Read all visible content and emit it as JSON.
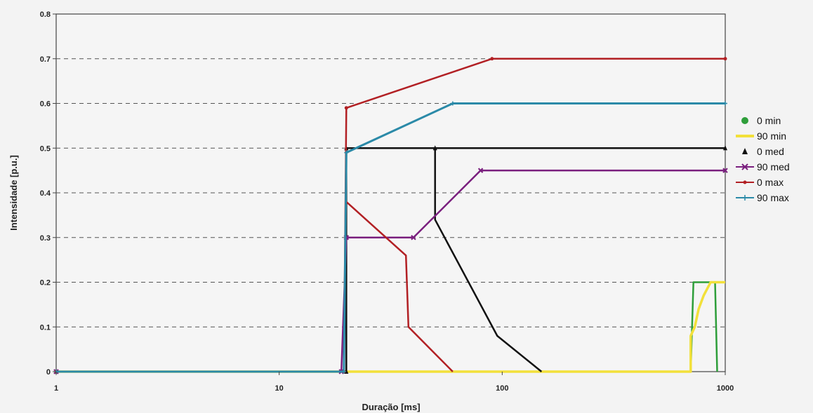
{
  "chart_data": {
    "type": "line",
    "xlabel": "Duração [ms]",
    "ylabel": "Intensidade [p.u.]",
    "xscale": "log",
    "xlim": [
      1,
      1000
    ],
    "ylim": [
      0,
      0.8
    ],
    "x_ticks": [
      1,
      10,
      100,
      1000
    ],
    "x_tick_labels": [
      "1",
      "10",
      "100",
      "1000"
    ],
    "y_ticks": [
      0,
      0.1,
      0.2,
      0.3,
      0.4,
      0.5,
      0.6,
      0.7,
      0.8
    ],
    "y_tick_labels": [
      "0",
      "0.1",
      "0.2",
      "0.3",
      "0.4",
      "0.5",
      "0.6",
      "0.7",
      "0.8"
    ],
    "grid": "horizontal dashed",
    "legend_position": "right",
    "series": [
      {
        "name": "0 min",
        "color": "#2e9e3a",
        "marker": "circle",
        "legend_marker_only": true,
        "points": [
          [
            1,
            0
          ],
          [
            700,
            0
          ],
          [
            720,
            0.2
          ],
          [
            900,
            0.2
          ],
          [
            920,
            0
          ]
        ]
      },
      {
        "name": "90 min",
        "color": "#f2e03a",
        "marker": "none",
        "points": [
          [
            1,
            0
          ],
          [
            700,
            0
          ],
          [
            700,
            0.08
          ],
          [
            730,
            0.1
          ],
          [
            760,
            0.14
          ],
          [
            800,
            0.17
          ],
          [
            860,
            0.2
          ],
          [
            1000,
            0.2
          ]
        ]
      },
      {
        "name": "0 med",
        "color": "#111111",
        "marker": "triangle",
        "points": [
          [
            1,
            0
          ],
          [
            20,
            0
          ],
          [
            20,
            0.5
          ],
          [
            50,
            0.5
          ],
          [
            1000,
            0.5
          ]
        ],
        "drop_points": [
          [
            50,
            0.5
          ],
          [
            50,
            0.34
          ],
          [
            95,
            0.08
          ],
          [
            150,
            0
          ]
        ]
      },
      {
        "name": "90 med",
        "color": "#7a1f7e",
        "marker": "x",
        "points": [
          [
            1,
            0
          ],
          [
            19,
            0
          ],
          [
            20,
            0.3
          ],
          [
            40,
            0.3
          ],
          [
            80,
            0.45
          ],
          [
            1000,
            0.45
          ]
        ]
      },
      {
        "name": "0 max",
        "color": "#b22024",
        "marker": "dot",
        "points": [
          [
            1,
            0
          ],
          [
            19.5,
            0
          ],
          [
            20,
            0.59
          ],
          [
            90,
            0.7
          ],
          [
            1000,
            0.7
          ]
        ],
        "drop_points": [
          [
            20,
            0.38
          ],
          [
            37,
            0.26
          ],
          [
            38,
            0.1
          ],
          [
            60,
            0
          ]
        ]
      },
      {
        "name": "90 max",
        "color": "#2b8aa8",
        "marker": "plus",
        "points": [
          [
            1,
            0
          ],
          [
            19.5,
            0
          ],
          [
            20,
            0.49
          ],
          [
            60,
            0.6
          ],
          [
            1000,
            0.6
          ]
        ]
      }
    ]
  }
}
